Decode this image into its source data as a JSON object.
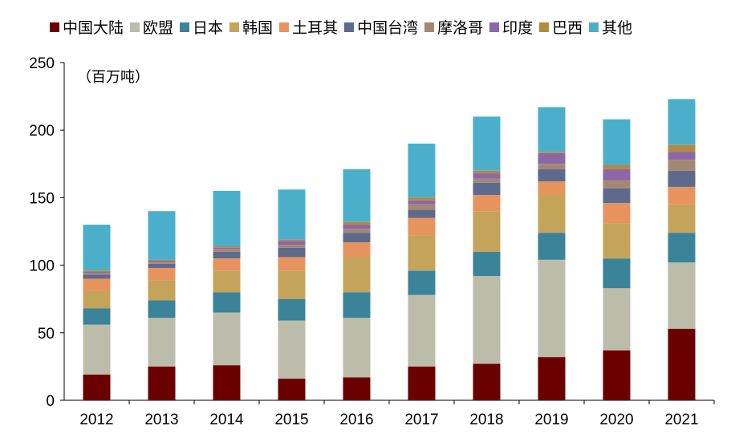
{
  "chart_data": {
    "type": "bar",
    "stacked": true,
    "title": "",
    "unit_label": "（百万吨）",
    "xlabel": "",
    "ylabel": "",
    "ylim": [
      0,
      250
    ],
    "yticks": [
      0,
      50,
      100,
      150,
      200,
      250
    ],
    "categories": [
      "2012",
      "2013",
      "2014",
      "2015",
      "2016",
      "2017",
      "2018",
      "2019",
      "2020",
      "2021"
    ],
    "series": [
      {
        "name": "中国大陆",
        "color": "#6b0000",
        "values": [
          19,
          25,
          26,
          16,
          17,
          25,
          27,
          32,
          37,
          53
        ]
      },
      {
        "name": "欧盟",
        "color": "#bcbcaa",
        "values": [
          37,
          36,
          39,
          43,
          44,
          53,
          65,
          72,
          46,
          49
        ]
      },
      {
        "name": "日本",
        "color": "#3a8399",
        "values": [
          12,
          13,
          15,
          16,
          19,
          18,
          18,
          20,
          22,
          22
        ]
      },
      {
        "name": "韩国",
        "color": "#c4a35a",
        "values": [
          13,
          15,
          16,
          21,
          26,
          26,
          30,
          28,
          26,
          21
        ]
      },
      {
        "name": "土耳其",
        "color": "#e6935e",
        "values": [
          9,
          9,
          9,
          10,
          11,
          13,
          12,
          10,
          15,
          13
        ]
      },
      {
        "name": "中国台湾",
        "color": "#5d6a8e",
        "values": [
          3,
          3,
          5,
          7,
          7,
          6,
          9,
          9,
          11,
          12
        ]
      },
      {
        "name": "摩洛哥",
        "color": "#a38873",
        "values": [
          1,
          1,
          2,
          2,
          3,
          4,
          3,
          4,
          6,
          8
        ]
      },
      {
        "name": "印度",
        "color": "#8c67a8",
        "values": [
          1,
          1,
          1,
          3,
          3,
          3,
          4,
          8,
          8,
          6
        ]
      },
      {
        "name": "巴西",
        "color": "#b38a3e",
        "values": [
          1,
          1,
          1,
          1,
          2,
          2,
          2,
          1,
          3,
          5
        ]
      },
      {
        "name": "其他",
        "color": "#4bafcb",
        "values": [
          34,
          36,
          41,
          37,
          39,
          40,
          40,
          33,
          34,
          34
        ]
      }
    ],
    "legend_position": "top",
    "grid": false
  }
}
